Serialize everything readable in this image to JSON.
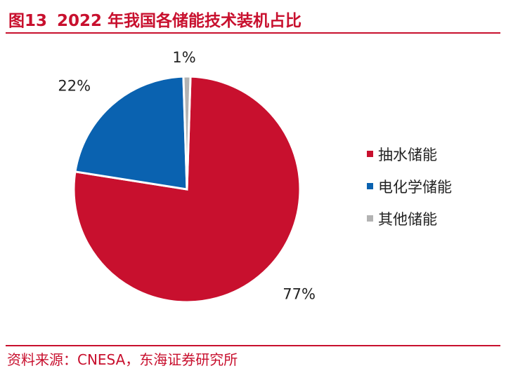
{
  "header": {
    "figure_number": "图13",
    "title": "2022 年我国各储能技术装机占比"
  },
  "footer": {
    "source": "资料来源：CNESA，东海证券研究所"
  },
  "chart_data": {
    "type": "pie",
    "title": "2022 年我国各储能技术装机占比",
    "categories": [
      "抽水储能",
      "电化学储能",
      "其他储能"
    ],
    "values": [
      77,
      22,
      1
    ],
    "labels": [
      "77%",
      "22%",
      "1%"
    ],
    "colors": [
      "#c8102e",
      "#0a62b0",
      "#b3b3b3"
    ],
    "legend_position": "right"
  }
}
